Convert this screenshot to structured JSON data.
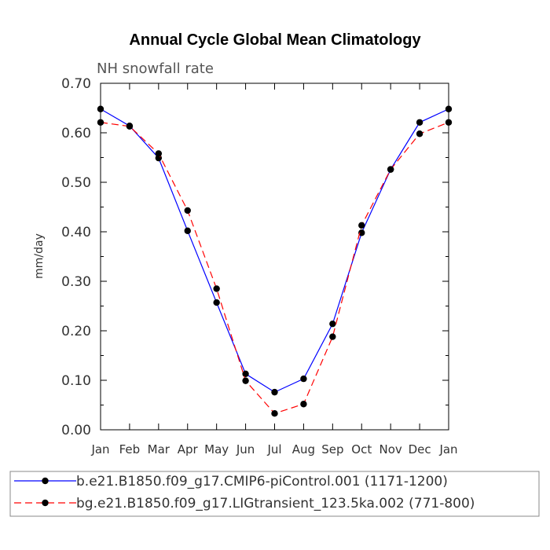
{
  "chart_data": {
    "type": "line",
    "title": "Annual Cycle Global Mean Climatology",
    "subtitle": "NH snowfall rate",
    "xlabel": "",
    "ylabel": "mm/day",
    "categories": [
      "Jan",
      "Feb",
      "Mar",
      "Apr",
      "May",
      "Jun",
      "Jul",
      "Aug",
      "Sep",
      "Oct",
      "Nov",
      "Dec",
      "Jan"
    ],
    "ylim": [
      0,
      0.7
    ],
    "yticks": [
      "0.00",
      "0.10",
      "0.20",
      "0.30",
      "0.40",
      "0.50",
      "0.60",
      "0.70"
    ],
    "series": [
      {
        "name": "b.e21.B1850.f09_g17.CMIP6-piControl.001 (1171-1200)",
        "color": "#0000ff",
        "dash": "solid",
        "values": [
          0.648,
          0.614,
          0.549,
          0.402,
          0.257,
          0.113,
          0.076,
          0.103,
          0.214,
          0.398,
          0.526,
          0.621,
          0.648
        ]
      },
      {
        "name": "bg.e21.B1850.f09_g17.LIGtransient_123.5ka.002 (771-800)",
        "color": "#ff0000",
        "dash": "dashed",
        "values": [
          0.621,
          0.613,
          0.558,
          0.443,
          0.285,
          0.099,
          0.033,
          0.052,
          0.188,
          0.413,
          0.526,
          0.598,
          0.621
        ]
      }
    ],
    "grid": false,
    "legend_position": "bottom"
  }
}
